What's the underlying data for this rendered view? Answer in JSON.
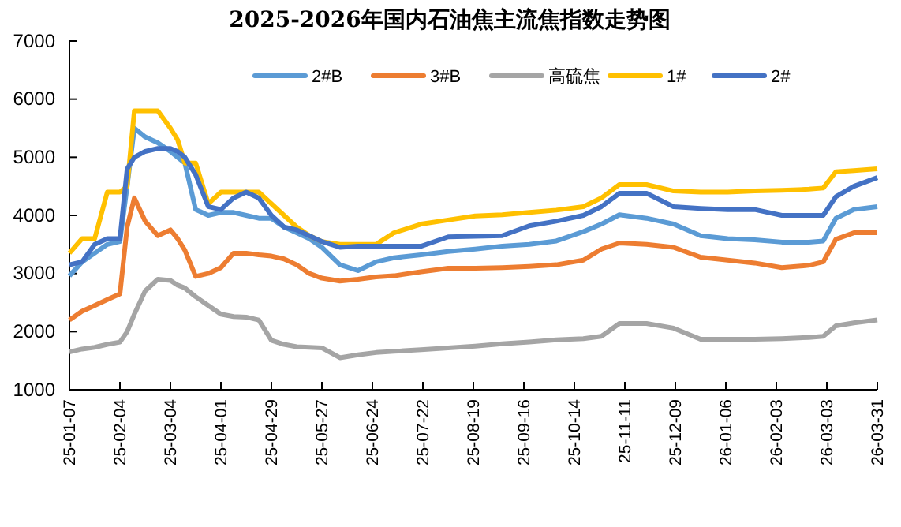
{
  "chart_data": {
    "type": "line",
    "title": "2025-2026年国内石油焦主流焦指数走势图",
    "x": [
      "2025-01-07",
      "2025-01-14",
      "2025-01-21",
      "2025-01-28",
      "2025-02-04",
      "2025-02-08",
      "2025-02-12",
      "2025-02-18",
      "2025-02-25",
      "2025-03-04",
      "2025-03-08",
      "2025-03-12",
      "2025-03-18",
      "2025-03-25",
      "2025-04-01",
      "2025-04-08",
      "2025-04-15",
      "2025-04-22",
      "2025-04-29",
      "2025-05-06",
      "2025-05-13",
      "2025-05-20",
      "2025-05-27",
      "2025-06-06",
      "2025-06-16",
      "2025-06-26",
      "2025-07-06",
      "2025-07-21",
      "2025-08-05",
      "2025-08-20",
      "2025-09-04",
      "2025-09-19",
      "2025-10-04",
      "2025-10-19",
      "2025-10-29",
      "2025-11-08",
      "2025-11-23",
      "2025-12-08",
      "2025-12-23",
      "2026-01-07",
      "2026-01-22",
      "2026-02-06",
      "2026-02-21",
      "2026-03-01",
      "2026-03-08",
      "2026-03-18",
      "2026-03-31"
    ],
    "series": [
      {
        "name": "2#B",
        "color": "#5b9bd5",
        "values": [
          2960,
          3200,
          3350,
          3500,
          3550,
          4500,
          5500,
          5350,
          5250,
          5100,
          5000,
          4900,
          4100,
          4000,
          4050,
          4050,
          4000,
          3950,
          3950,
          3800,
          3700,
          3600,
          3450,
          3150,
          3050,
          3200,
          3270,
          3320,
          3380,
          3420,
          3470,
          3500,
          3560,
          3720,
          3850,
          4010,
          3950,
          3850,
          3650,
          3600,
          3580,
          3540,
          3540,
          3560,
          3950,
          4100,
          4150
        ]
      },
      {
        "name": "3#B",
        "color": "#ed7d31",
        "values": [
          2200,
          2350,
          2450,
          2550,
          2650,
          3800,
          4300,
          3900,
          3650,
          3750,
          3600,
          3400,
          2950,
          3000,
          3100,
          3350,
          3350,
          3320,
          3300,
          3250,
          3150,
          3000,
          2920,
          2870,
          2900,
          2940,
          2960,
          3030,
          3090,
          3090,
          3100,
          3120,
          3150,
          3230,
          3420,
          3525,
          3500,
          3450,
          3280,
          3230,
          3180,
          3100,
          3140,
          3200,
          3590,
          3700,
          3700
        ]
      },
      {
        "name": "高硫焦",
        "color": "#a5a5a5",
        "values": [
          1650,
          1700,
          1730,
          1780,
          1820,
          2000,
          2300,
          2700,
          2900,
          2880,
          2800,
          2750,
          2600,
          2450,
          2300,
          2260,
          2250,
          2200,
          1850,
          1780,
          1740,
          1730,
          1720,
          1550,
          1600,
          1640,
          1660,
          1690,
          1720,
          1750,
          1790,
          1820,
          1860,
          1880,
          1920,
          2140,
          2140,
          2060,
          1870,
          1870,
          1870,
          1880,
          1900,
          1920,
          2100,
          2150,
          2200
        ]
      },
      {
        "name": "1#",
        "color": "#ffc000",
        "values": [
          3350,
          3600,
          3600,
          4400,
          4400,
          4500,
          5800,
          5800,
          5800,
          5500,
          5300,
          4900,
          4900,
          4200,
          4400,
          4400,
          4400,
          4400,
          4200,
          4000,
          3800,
          3650,
          3550,
          3500,
          3500,
          3500,
          3700,
          3850,
          3920,
          3990,
          4010,
          4050,
          4090,
          4150,
          4300,
          4530,
          4530,
          4420,
          4400,
          4400,
          4420,
          4430,
          4450,
          4470,
          4750,
          4770,
          4800
        ]
      },
      {
        "name": "2#",
        "color": "#4472c4",
        "values": [
          3150,
          3200,
          3500,
          3600,
          3600,
          4800,
          5000,
          5100,
          5150,
          5150,
          5100,
          5000,
          4700,
          4150,
          4100,
          4300,
          4400,
          4300,
          4000,
          3800,
          3750,
          3650,
          3550,
          3450,
          3470,
          3470,
          3470,
          3470,
          3630,
          3640,
          3650,
          3820,
          3900,
          4000,
          4150,
          4380,
          4380,
          4150,
          4120,
          4100,
          4100,
          4000,
          4000,
          4000,
          4320,
          4500,
          4650
        ]
      }
    ],
    "xlim": [
      "2025-01-07",
      "2026-03-31"
    ],
    "xticks": [
      {
        "value": "2025-01-07",
        "label": "25-01-07"
      },
      {
        "value": "2025-02-04",
        "label": "25-02-04"
      },
      {
        "value": "2025-03-04",
        "label": "25-03-04"
      },
      {
        "value": "2025-04-01",
        "label": "25-04-01"
      },
      {
        "value": "2025-04-29",
        "label": "25-04-29"
      },
      {
        "value": "2025-05-27",
        "label": "25-05-27"
      },
      {
        "value": "2025-06-24",
        "label": "25-06-24"
      },
      {
        "value": "2025-07-22",
        "label": "25-07-22"
      },
      {
        "value": "2025-08-19",
        "label": "25-08-19"
      },
      {
        "value": "2025-09-16",
        "label": "25-09-16"
      },
      {
        "value": "2025-10-14",
        "label": "25-10-14"
      },
      {
        "value": "2025-11-11",
        "label": "25-11-11"
      },
      {
        "value": "2025-12-09",
        "label": "25-12-09"
      },
      {
        "value": "2026-01-06",
        "label": "26-01-06"
      },
      {
        "value": "2026-02-03",
        "label": "26-02-03"
      },
      {
        "value": "2026-03-03",
        "label": "26-03-03"
      },
      {
        "value": "2026-03-31",
        "label": "26-03-31"
      }
    ],
    "ylim": [
      1000,
      7000
    ],
    "yticks": [
      1000,
      2000,
      3000,
      4000,
      5000,
      6000,
      7000
    ],
    "grid": false,
    "legend": "top",
    "marker": "none",
    "line_style": "solid"
  }
}
